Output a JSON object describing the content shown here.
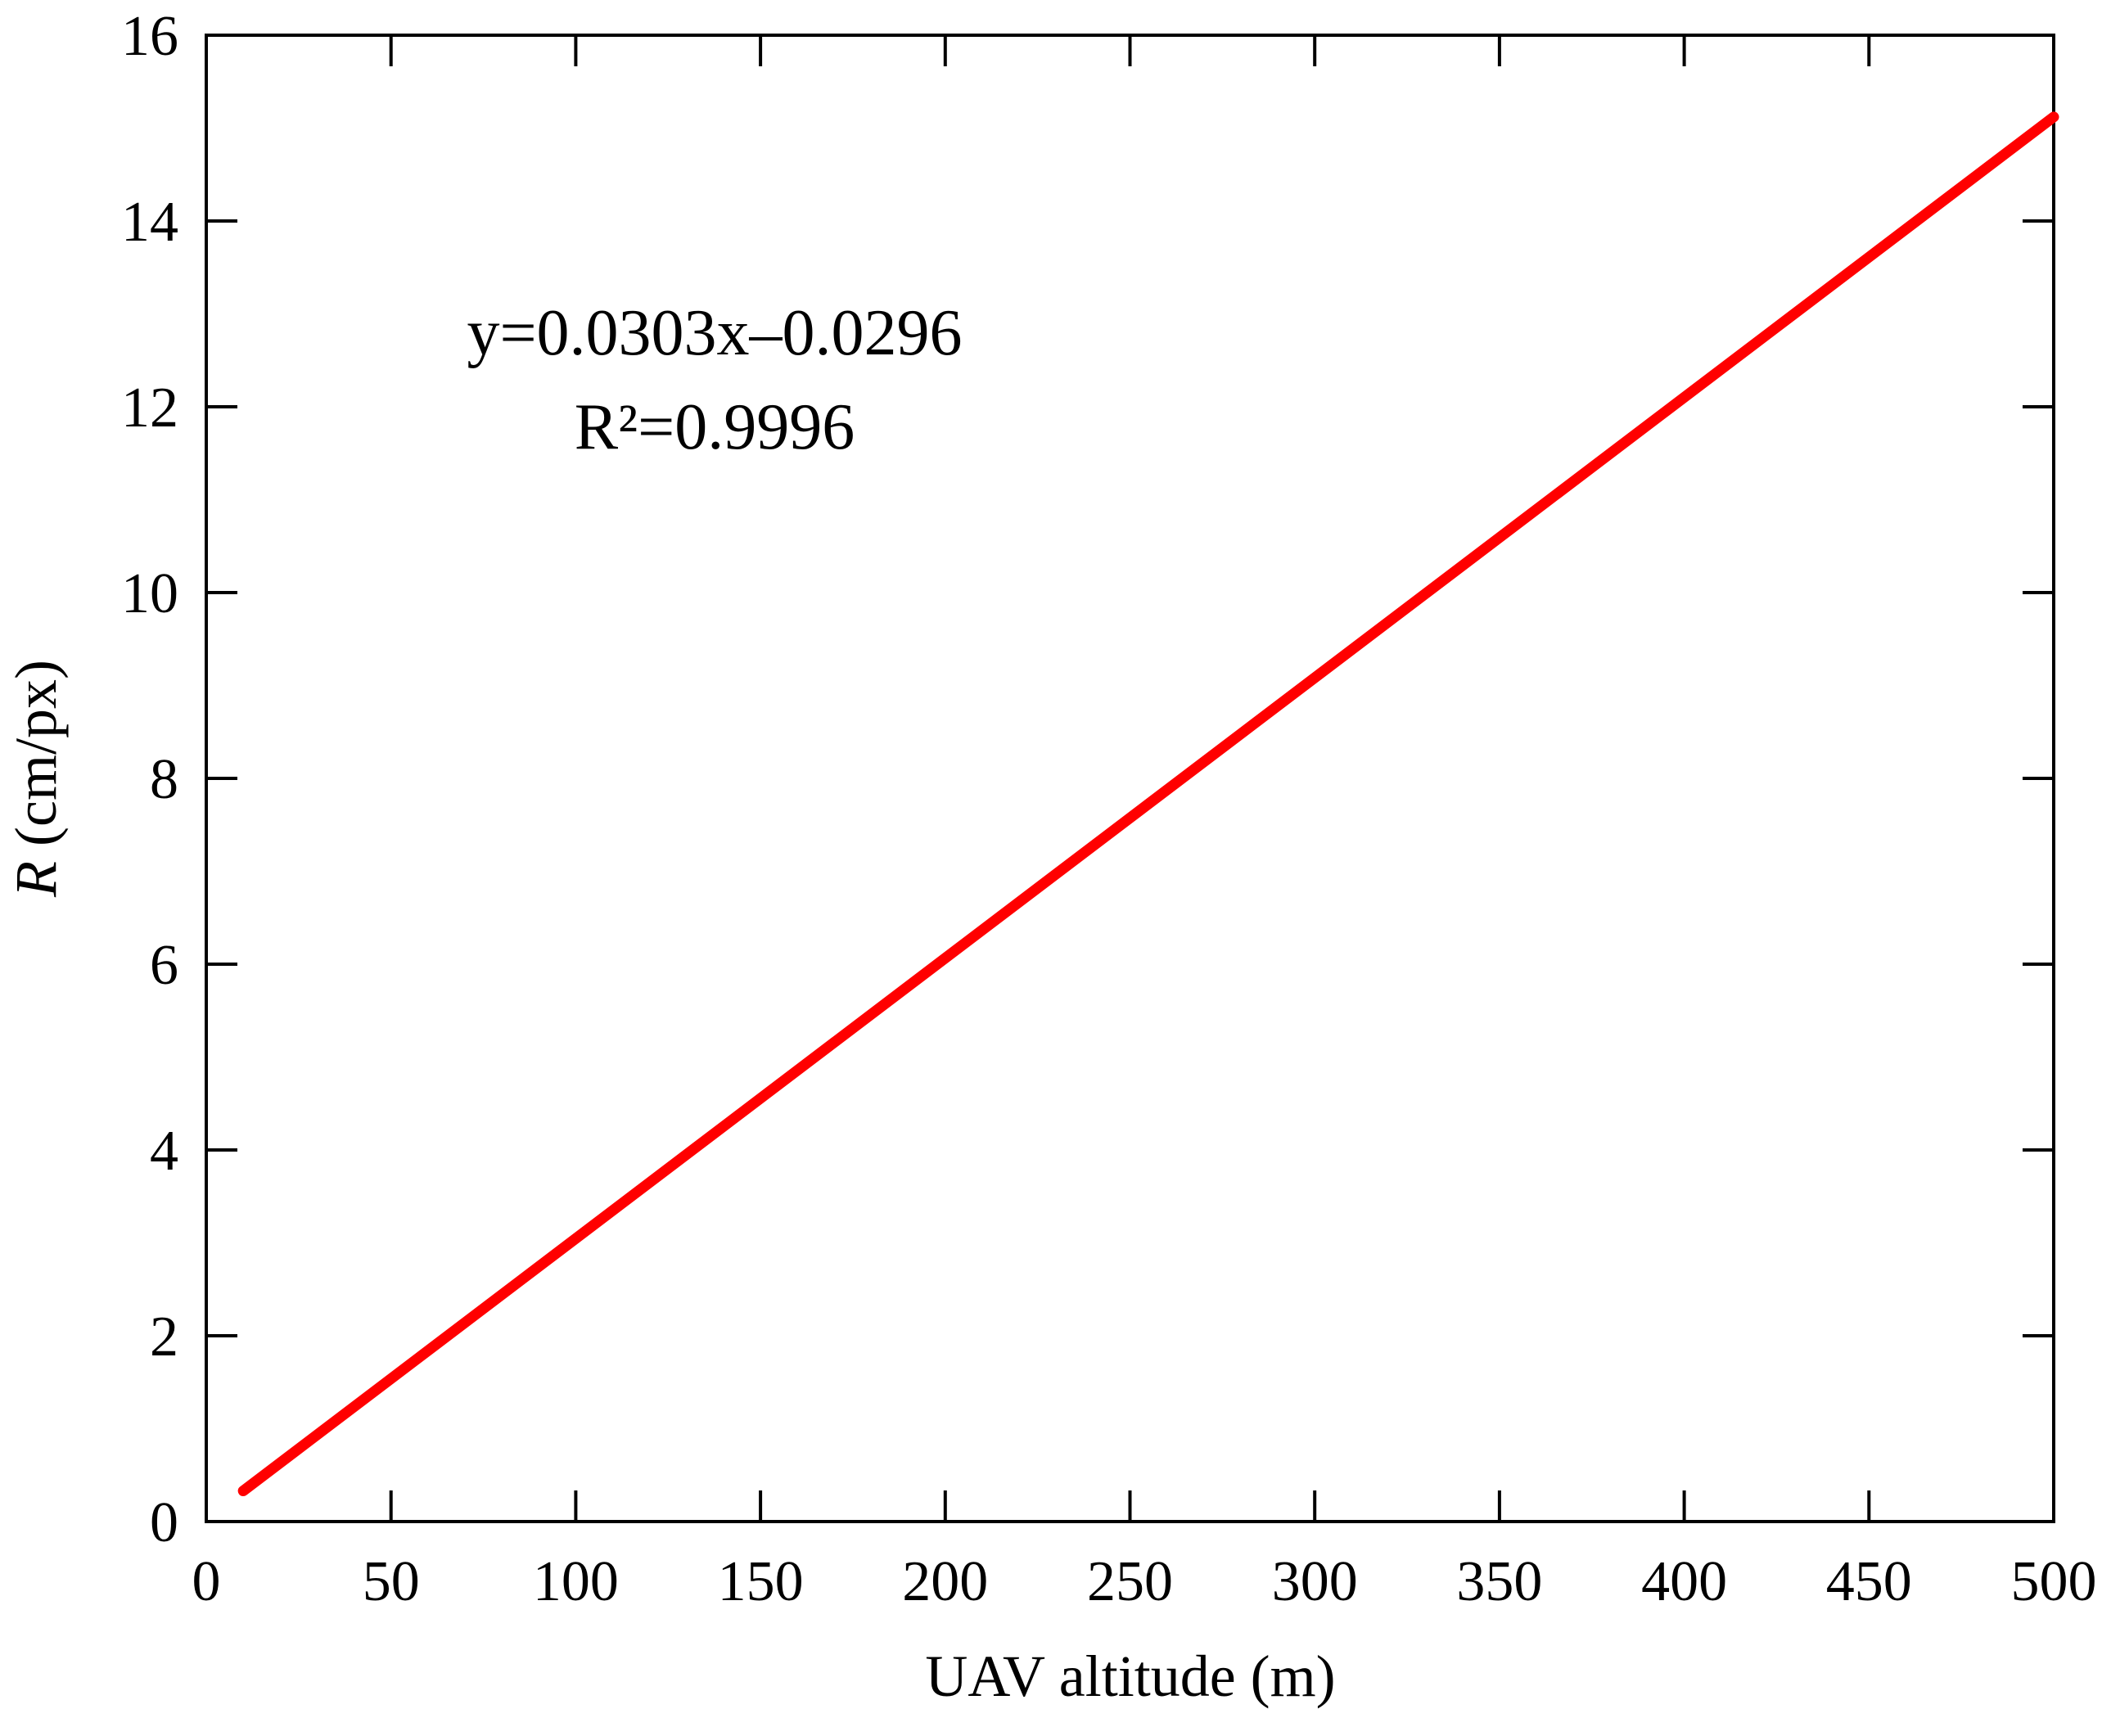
{
  "chart_data": {
    "type": "line",
    "title": "",
    "xlabel": "UAV altitude (m)",
    "ylabel": {
      "variable": "R",
      "unit": "(cm/px)"
    },
    "xlim": [
      0,
      500
    ],
    "ylim": [
      0,
      16
    ],
    "x_ticks": [
      "0",
      "50",
      "100",
      "150",
      "200",
      "250",
      "300",
      "350",
      "400",
      "450",
      "500"
    ],
    "y_ticks": [
      "0",
      "2",
      "4",
      "6",
      "8",
      "10",
      "12",
      "14",
      "16"
    ],
    "grid": false,
    "legend": "none",
    "series": [
      {
        "x": [
          10,
          500
        ],
        "y": [
          0.33,
          15.12
        ],
        "color": "#ff0000"
      }
    ],
    "annotations": {
      "equation": "y=0.0303x–0.0296",
      "r_squared": "R²=0.9996"
    }
  }
}
